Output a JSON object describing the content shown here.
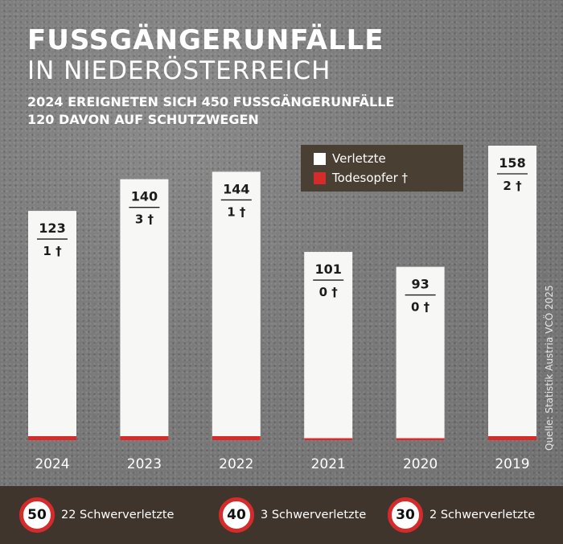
{
  "header": {
    "title_line1": "FUSSGÄNGERUNFÄLLE",
    "title_line2": "IN NIEDERÖSTERREICH",
    "subtitle_line1": "2024 EREIGNETEN SICH 450 FUSSGÄNGERUNFÄLLE",
    "subtitle_line2": "120 DAVON AUF SCHUTZWEGEN"
  },
  "legend": {
    "items": [
      {
        "label": "Verletzte",
        "color": "#ffffff"
      },
      {
        "label": "Todesopfer †",
        "color": "#d52b2b"
      }
    ]
  },
  "chart_data": {
    "type": "bar",
    "categories": [
      "2024",
      "2023",
      "2022",
      "2021",
      "2020",
      "2019"
    ],
    "series": [
      {
        "name": "Verletzte",
        "values": [
          123,
          140,
          144,
          101,
          93,
          158
        ]
      },
      {
        "name": "Todesopfer †",
        "values": [
          1,
          3,
          1,
          0,
          0,
          2
        ]
      }
    ],
    "value_labels": [
      "123",
      "140",
      "144",
      "101",
      "93",
      "158"
    ],
    "death_labels": [
      "1 †",
      "3 †",
      "1 †",
      "0 †",
      "0 †",
      "2 †"
    ],
    "ylim": [
      0,
      158
    ]
  },
  "source": "Quelle: Statistik Austria VCÖ 2025",
  "footer": {
    "items": [
      {
        "speed": "50",
        "label": "22 Schwerverletzte"
      },
      {
        "speed": "40",
        "label": "3 Schwerverletzte"
      },
      {
        "speed": "30",
        "label": "2 Schwerverletzte"
      }
    ]
  },
  "colors": {
    "bar": "#f7f7f5",
    "death": "#d52b2b",
    "legend_bg": "#4a3f33",
    "footer_bg": "#3f352c"
  }
}
